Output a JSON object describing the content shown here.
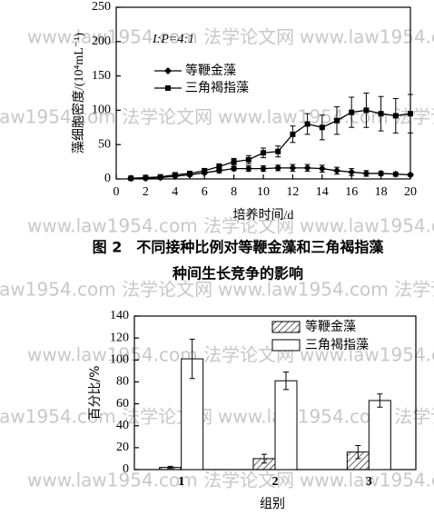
{
  "watermark": "www.law1954.com 法学论文网",
  "caption": [
    "图 2　不同接种比例对等鞭金藻和三角褐指藻",
    "种间生长竞争的影响"
  ],
  "chart_data": [
    {
      "type": "line",
      "annotation": "I:P=4:1",
      "x": [
        1,
        2,
        3,
        4,
        5,
        6,
        7,
        8,
        9,
        10,
        11,
        12,
        13,
        14,
        15,
        16,
        17,
        18,
        19,
        20
      ],
      "series": [
        {
          "name": "等鞭金藻",
          "color": "#000",
          "marker": "diamond",
          "values": [
            1,
            1,
            2,
            4,
            6,
            9,
            12,
            15,
            15,
            15,
            16,
            16,
            16,
            15,
            12,
            10,
            8,
            8,
            7,
            6
          ],
          "errors": [
            0,
            0,
            1,
            1,
            2,
            2,
            3,
            3,
            4,
            4,
            4,
            5,
            5,
            5,
            5,
            5,
            4,
            3,
            3,
            2
          ]
        },
        {
          "name": "三角褐指藻",
          "color": "#000",
          "marker": "square",
          "values": [
            1,
            2,
            3,
            6,
            8,
            12,
            18,
            25,
            28,
            38,
            40,
            65,
            80,
            75,
            85,
            97,
            100,
            95,
            92,
            95
          ],
          "errors": [
            0,
            0,
            1,
            1,
            2,
            3,
            4,
            5,
            6,
            7,
            8,
            12,
            15,
            18,
            20,
            22,
            25,
            25,
            25,
            28
          ]
        }
      ],
      "xlim": [
        0,
        20
      ],
      "xticks": [
        0,
        2,
        4,
        6,
        8,
        10,
        12,
        14,
        16,
        18,
        20
      ],
      "ylim": [
        0,
        250
      ],
      "yticks": [
        0,
        50,
        100,
        150,
        200,
        250
      ],
      "xlabel": "培养时间/d",
      "ylabel": "藻细胞密度/(10⁴mL⁻¹)"
    },
    {
      "type": "bar",
      "categories": [
        "1",
        "2",
        "3"
      ],
      "series": [
        {
          "name": "等鞭金藻",
          "color": "#000",
          "hatch": true,
          "values": [
            2,
            10,
            16
          ],
          "errors": [
            1,
            4,
            6
          ]
        },
        {
          "name": "三角褐指藻",
          "color": "#000",
          "hatch": false,
          "values": [
            101,
            81,
            63
          ],
          "errors": [
            18,
            8,
            6
          ]
        }
      ],
      "ylim": [
        0,
        140
      ],
      "yticks": [
        0,
        20,
        40,
        60,
        80,
        100,
        120,
        140
      ],
      "xlabel": "组别",
      "ylabel": "百分比/%"
    }
  ]
}
